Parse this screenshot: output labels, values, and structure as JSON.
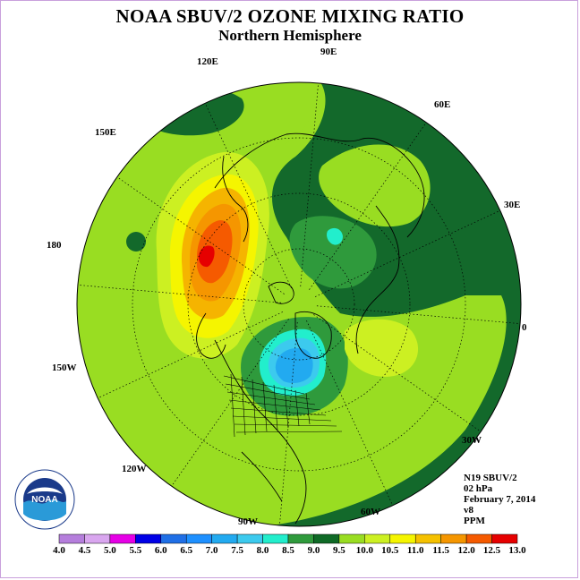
{
  "title": "NOAA SBUV/2 OZONE MIXING RATIO",
  "subtitle": "Northern Hemisphere",
  "longitude_labels": {
    "lon_90e": "90E",
    "lon_60e": "60E",
    "lon_30e": "30E",
    "lon_0": "0",
    "lon_30w": "30W",
    "lon_60w": "60W",
    "lon_90w": "90W",
    "lon_120w": "120W",
    "lon_150w": "150W",
    "lon_180": "180",
    "lon_150e": "150E",
    "lon_120e": "120E"
  },
  "info": {
    "instrument": "N19 SBUV/2",
    "level": "02 hPa",
    "date": "February 7, 2014",
    "version": "v8",
    "units": "PPM"
  },
  "logo_text": "NOAA",
  "colorbar": {
    "ticks": [
      "4.0",
      "4.5",
      "5.0",
      "5.5",
      "6.0",
      "6.5",
      "7.0",
      "7.5",
      "8.0",
      "8.5",
      "9.0",
      "9.5",
      "10.0",
      "10.5",
      "11.0",
      "11.5",
      "12.0",
      "12.5",
      "13.0"
    ],
    "colors": [
      "#b57edc",
      "#d9a6ef",
      "#e600e6",
      "#0000e6",
      "#1f6fe6",
      "#1e90ff",
      "#22aaf0",
      "#3ccaee",
      "#22eecc",
      "#2f9a3c",
      "#0f6a26",
      "#99dd22",
      "#ccf022",
      "#f5f500",
      "#f5c100",
      "#f59600",
      "#f55a00",
      "#e60000",
      "#8b5a3c"
    ]
  },
  "colors": {
    "ocean_dark_green": "#13692b",
    "mid_green": "#2f9a3c",
    "light_green": "#99dd22",
    "yellow_green": "#ccf022",
    "yellow": "#f5f500",
    "orange": "#f59600",
    "red": "#e60000",
    "cyan": "#22eecc",
    "blue": "#22aaf0"
  }
}
